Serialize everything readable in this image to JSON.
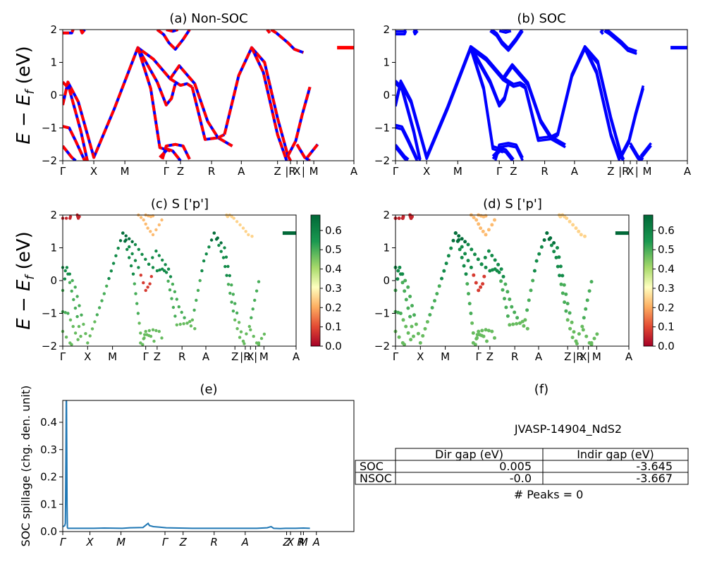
{
  "chart_data": [
    {
      "id": "a",
      "type": "line",
      "title": "(a) Non-SOC",
      "ylabel_main": "E − E",
      "ylabel_sub": "f",
      "ylabel_unit": " (eV)",
      "ylim": [
        -2,
        2
      ],
      "yticks": [
        -2,
        -1,
        0,
        1,
        2
      ],
      "kpath": [
        "Γ",
        "X",
        "M",
        "Γ",
        "Z",
        "R",
        "A",
        "Z",
        "|R",
        "X",
        "|",
        "M",
        "A"
      ],
      "colors": {
        "spin_up": "#0000ff",
        "spin_down": "#ff0000"
      },
      "series": [
        {
          "points": [
            [
              0,
              -0.3
            ],
            [
              0.4,
              0.4
            ],
            [
              1.2,
              -0.2
            ],
            [
              2.4,
              -1.9
            ],
            [
              4,
              -0.4
            ],
            [
              5.8,
              1.45
            ],
            [
              7,
              1.1
            ],
            [
              8.3,
              0.5
            ],
            [
              9.1,
              0.3
            ],
            [
              9.6,
              0.35
            ],
            [
              10,
              0.25
            ]
          ]
        },
        {
          "points": [
            [
              0,
              0.4
            ],
            [
              0.5,
              0.2
            ],
            [
              1.4,
              -1.1
            ],
            [
              1.9,
              -2
            ]
          ]
        },
        {
          "points": [
            [
              0,
              -0.95
            ],
            [
              0.5,
              -1.0
            ],
            [
              1.0,
              -1.4
            ],
            [
              1.7,
              -2
            ]
          ]
        },
        {
          "points": [
            [
              0,
              -1.55
            ],
            [
              0.7,
              -1.9
            ],
            [
              1.0,
              -2
            ]
          ]
        },
        {
          "points": [
            [
              5.8,
              1.45
            ],
            [
              7.3,
              0.4
            ],
            [
              8.0,
              -0.3
            ],
            [
              8.4,
              -0.1
            ],
            [
              8.7,
              0.35
            ]
          ]
        },
        {
          "points": [
            [
              5.8,
              1.45
            ],
            [
              6.8,
              0.2
            ],
            [
              7.5,
              -1.6
            ],
            [
              8.3,
              -1.7
            ]
          ]
        },
        {
          "points": [
            [
              7.7,
              -1.95
            ],
            [
              8.0,
              -1.55
            ],
            [
              8.7,
              -1.5
            ],
            [
              9.3,
              -1.55
            ],
            [
              9.8,
              -1.95
            ]
          ]
        },
        {
          "points": [
            [
              7.5,
              -1.9
            ],
            [
              8.1,
              -1.65
            ],
            [
              8.5,
              -1.7
            ],
            [
              9.1,
              -2
            ]
          ]
        },
        {
          "points": [
            [
              10,
              0.25
            ],
            [
              11,
              -1.35
            ],
            [
              12,
              -1.3
            ],
            [
              13.1,
              -1.55
            ]
          ]
        },
        {
          "points": [
            [
              8.3,
              0.5
            ],
            [
              9.0,
              0.9
            ],
            [
              10.2,
              0.35
            ],
            [
              11.2,
              -0.8
            ],
            [
              12,
              -1.3
            ],
            [
              12.5,
              -1.2
            ]
          ]
        },
        {
          "points": [
            [
              12.5,
              -1.2
            ],
            [
              13.6,
              0.6
            ],
            [
              14.6,
              1.45
            ],
            [
              15.6,
              1.0
            ],
            [
              16.6,
              -0.7
            ],
            [
              17.4,
              -1.85
            ],
            [
              18.0,
              -1.4
            ],
            [
              18.5,
              -0.6
            ],
            [
              19.1,
              0.25
            ]
          ]
        },
        {
          "points": [
            [
              14.6,
              1.45
            ],
            [
              15.5,
              0.7
            ],
            [
              16.6,
              -1.2
            ],
            [
              17.3,
              -2
            ]
          ]
        },
        {
          "points": [
            [
              17.4,
              -1.85
            ],
            [
              17.6,
              -2.0
            ]
          ]
        },
        {
          "points": [
            [
              8.0,
              2.0
            ],
            [
              8.5,
              1.95
            ],
            [
              8.9,
              2.0
            ]
          ]
        },
        {
          "points": [
            [
              7.3,
              2.0
            ],
            [
              7.8,
              1.85
            ],
            [
              8.2,
              1.6
            ],
            [
              8.7,
              1.4
            ],
            [
              9.3,
              1.7
            ],
            [
              9.8,
              2.0
            ]
          ]
        },
        {
          "points": [
            [
              16.1,
              2.0
            ],
            [
              16.5,
              1.9
            ],
            [
              17.4,
              1.6
            ],
            [
              17.9,
              1.4
            ],
            [
              18.6,
              1.3
            ]
          ]
        },
        {
          "points": [
            [
              15.8,
              2.0
            ],
            [
              16.0,
              1.9
            ]
          ]
        },
        {
          "points": [
            [
              18.1,
              -1.5
            ],
            [
              18.7,
              -1.9
            ],
            [
              19.1,
              -2
            ]
          ]
        },
        {
          "points": [
            [
              18.9,
              -1.9
            ],
            [
              19.7,
              -1.5
            ]
          ]
        },
        {
          "points": [
            [
              0,
              1.9
            ],
            [
              0.7,
              1.9
            ],
            [
              0.8,
              2.0
            ]
          ]
        },
        {
          "points": [
            [
              1.4,
              2.0
            ],
            [
              1.5,
              1.9
            ],
            [
              1.7,
              2.0
            ]
          ]
        }
      ],
      "flat_band": {
        "x": [
          21.2,
          22.5
        ],
        "y": 1.45
      }
    },
    {
      "id": "b",
      "type": "line",
      "title": "(b) SOC",
      "ylim": [
        -2,
        2
      ],
      "yticks": [
        -2,
        -1,
        0,
        1,
        2
      ],
      "kpath": [
        "Γ",
        "X",
        "M",
        "Γ",
        "Z",
        "R",
        "A",
        "Z",
        "|R",
        "X",
        "|",
        "M",
        "A"
      ],
      "colors": {
        "band": "#0000ff"
      }
    },
    {
      "id": "c",
      "type": "scatter",
      "title": "(c)  S ['p']",
      "ylim": [
        -2,
        2
      ],
      "yticks": [
        -2,
        -1,
        0,
        1,
        2
      ],
      "kpath": [
        "Γ",
        "X",
        "M",
        "Γ",
        "Z",
        "R",
        "A",
        "Z",
        "|R",
        "X",
        "|",
        "M",
        "A"
      ],
      "colorbar": {
        "ticks": [
          "0.0",
          "0.1",
          "0.2",
          "0.3",
          "0.4",
          "0.5",
          "0.6"
        ],
        "range": [
          0,
          0.68
        ],
        "cmap": "RdYlGn"
      }
    },
    {
      "id": "d",
      "type": "scatter",
      "title": "(d) S ['p']",
      "ylim": [
        -2,
        2
      ],
      "yticks": [
        -2,
        -1,
        0,
        1,
        2
      ],
      "kpath": [
        "Γ",
        "X",
        "M",
        "Γ",
        "Z",
        "R",
        "A",
        "Z",
        "|R",
        "X",
        "|",
        "M",
        "A"
      ],
      "colorbar": {
        "ticks": [
          "0.0",
          "0.1",
          "0.2",
          "0.3",
          "0.4",
          "0.5",
          "0.6"
        ],
        "range": [
          0,
          0.68
        ],
        "cmap": "RdYlGn"
      }
    },
    {
      "id": "e",
      "type": "line",
      "title": "(e)",
      "ylabel": "SOC spillage (chg. den. unit)",
      "ylim": [
        0,
        0.48
      ],
      "yticks": [
        "0.0",
        "0.1",
        "0.2",
        "0.3",
        "0.4"
      ],
      "kpath": [
        "Γ",
        "X",
        "M",
        "Γ",
        "Z",
        "R",
        "A",
        "Z",
        "X",
        "R",
        "M",
        "A"
      ],
      "color": "#1f77b4",
      "points": [
        [
          0,
          0.018
        ],
        [
          0.1,
          0.02
        ],
        [
          0.15,
          0.022
        ],
        [
          0.2,
          0.03
        ],
        [
          0.22,
          0.1
        ],
        [
          0.25,
          0.3
        ],
        [
          0.27,
          0.48
        ],
        [
          0.29,
          0.48
        ],
        [
          0.31,
          0.3
        ],
        [
          0.33,
          0.1
        ],
        [
          0.36,
          0.015
        ],
        [
          0.4,
          0.012
        ],
        [
          1,
          0.012
        ],
        [
          2.4,
          0.012
        ],
        [
          3.2,
          0.013
        ],
        [
          4.6,
          0.012
        ],
        [
          5.2,
          0.014
        ],
        [
          6.2,
          0.015
        ],
        [
          6.6,
          0.03
        ],
        [
          6.7,
          0.022
        ],
        [
          7,
          0.018
        ],
        [
          7.5,
          0.016
        ],
        [
          8,
          0.014
        ],
        [
          9,
          0.013
        ],
        [
          10,
          0.012
        ],
        [
          12,
          0.012
        ],
        [
          14,
          0.012
        ],
        [
          15,
          0.012
        ],
        [
          15.8,
          0.014
        ],
        [
          16.1,
          0.018
        ],
        [
          16.3,
          0.012
        ],
        [
          16.8,
          0.011
        ],
        [
          17.2,
          0.012
        ],
        [
          18,
          0.012
        ],
        [
          18.6,
          0.013
        ],
        [
          19.1,
          0.012
        ]
      ]
    },
    {
      "id": "f",
      "type": "table",
      "title": "(f)",
      "subtitle": "JVASP-14904_NdS2",
      "columns": [
        "Dir gap (eV)",
        "Indir gap (eV)"
      ],
      "rows": [
        {
          "label": "SOC",
          "values": [
            "0.005",
            "-3.645"
          ]
        },
        {
          "label": "NSOC",
          "values": [
            "-0.0",
            "-3.667"
          ]
        }
      ],
      "footer": "# Peaks = 0"
    }
  ]
}
